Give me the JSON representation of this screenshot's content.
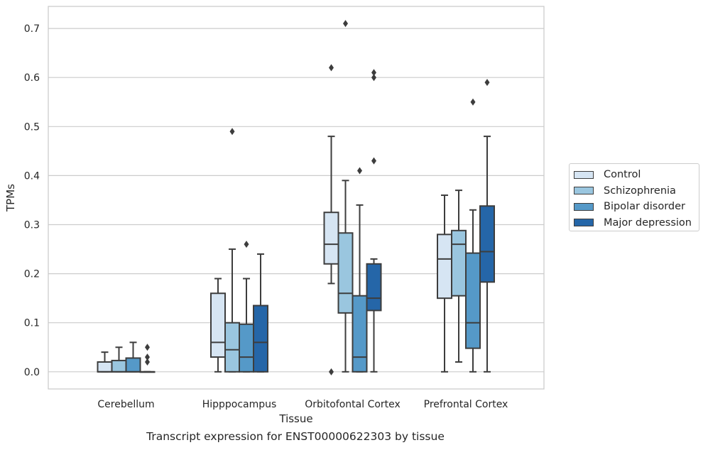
{
  "chart_data": {
    "type": "box",
    "xlabel": "Tissue",
    "ylabel": "TPMs",
    "ylim": [
      -0.035,
      0.745
    ],
    "yticks": [
      0.0,
      0.1,
      0.2,
      0.3,
      0.4,
      0.5,
      0.6,
      0.7
    ],
    "ytick_labels": [
      "0.0",
      "0.1",
      "0.2",
      "0.3",
      "0.4",
      "0.5",
      "0.6",
      "0.7"
    ],
    "grid": "horizontal",
    "legend_position": "right",
    "categories": [
      "Cerebellum",
      "Hipppocampus",
      "Orbitofontal Cortex",
      "Prefrontal Cortex"
    ],
    "series": [
      {
        "name": "Control",
        "color": "#d6e5f3",
        "boxes": [
          {
            "whislo": 0.0,
            "q1": 0.0,
            "med": 0.0,
            "q3": 0.02,
            "whishi": 0.04,
            "fliers": []
          },
          {
            "whislo": 0.0,
            "q1": 0.03,
            "med": 0.06,
            "q3": 0.16,
            "whishi": 0.19,
            "fliers": []
          },
          {
            "whislo": 0.18,
            "q1": 0.22,
            "med": 0.26,
            "q3": 0.325,
            "whishi": 0.48,
            "fliers": [
              0.0,
              0.62
            ]
          },
          {
            "whislo": 0.0,
            "q1": 0.15,
            "med": 0.23,
            "q3": 0.28,
            "whishi": 0.36,
            "fliers": []
          }
        ]
      },
      {
        "name": "Schizophrenia",
        "color": "#9ac6df",
        "boxes": [
          {
            "whislo": 0.0,
            "q1": 0.0,
            "med": 0.0,
            "q3": 0.023,
            "whishi": 0.05,
            "fliers": []
          },
          {
            "whislo": 0.0,
            "q1": 0.0,
            "med": 0.045,
            "q3": 0.1,
            "whishi": 0.25,
            "fliers": [
              0.49
            ]
          },
          {
            "whislo": 0.0,
            "q1": 0.12,
            "med": 0.16,
            "q3": 0.283,
            "whishi": 0.39,
            "fliers": [
              0.71
            ]
          },
          {
            "whislo": 0.02,
            "q1": 0.155,
            "med": 0.26,
            "q3": 0.288,
            "whishi": 0.37,
            "fliers": []
          }
        ]
      },
      {
        "name": "Bipolar disorder",
        "color": "#5599c8",
        "boxes": [
          {
            "whislo": 0.0,
            "q1": 0.0,
            "med": 0.0,
            "q3": 0.028,
            "whishi": 0.06,
            "fliers": []
          },
          {
            "whislo": 0.0,
            "q1": 0.0,
            "med": 0.03,
            "q3": 0.097,
            "whishi": 0.19,
            "fliers": [
              0.26
            ]
          },
          {
            "whislo": 0.0,
            "q1": 0.0,
            "med": 0.03,
            "q3": 0.155,
            "whishi": 0.34,
            "fliers": [
              0.41
            ]
          },
          {
            "whislo": 0.0,
            "q1": 0.048,
            "med": 0.1,
            "q3": 0.242,
            "whishi": 0.33,
            "fliers": [
              0.55
            ]
          }
        ]
      },
      {
        "name": "Major depression",
        "color": "#2566a8",
        "boxes": [
          {
            "whislo": 0.0,
            "q1": 0.0,
            "med": 0.0,
            "q3": 0.0,
            "whishi": 0.0,
            "fliers": [
              0.02,
              0.03,
              0.05
            ]
          },
          {
            "whislo": 0.0,
            "q1": 0.0,
            "med": 0.06,
            "q3": 0.135,
            "whishi": 0.24,
            "fliers": []
          },
          {
            "whislo": 0.0,
            "q1": 0.125,
            "med": 0.15,
            "q3": 0.22,
            "whishi": 0.23,
            "fliers": [
              0.43,
              0.6,
              0.61
            ]
          },
          {
            "whislo": 0.0,
            "q1": 0.183,
            "med": 0.245,
            "q3": 0.338,
            "whishi": 0.48,
            "fliers": [
              0.59
            ]
          }
        ]
      }
    ]
  },
  "caption": "Transcript expression for ENST00000622303 by tissue"
}
